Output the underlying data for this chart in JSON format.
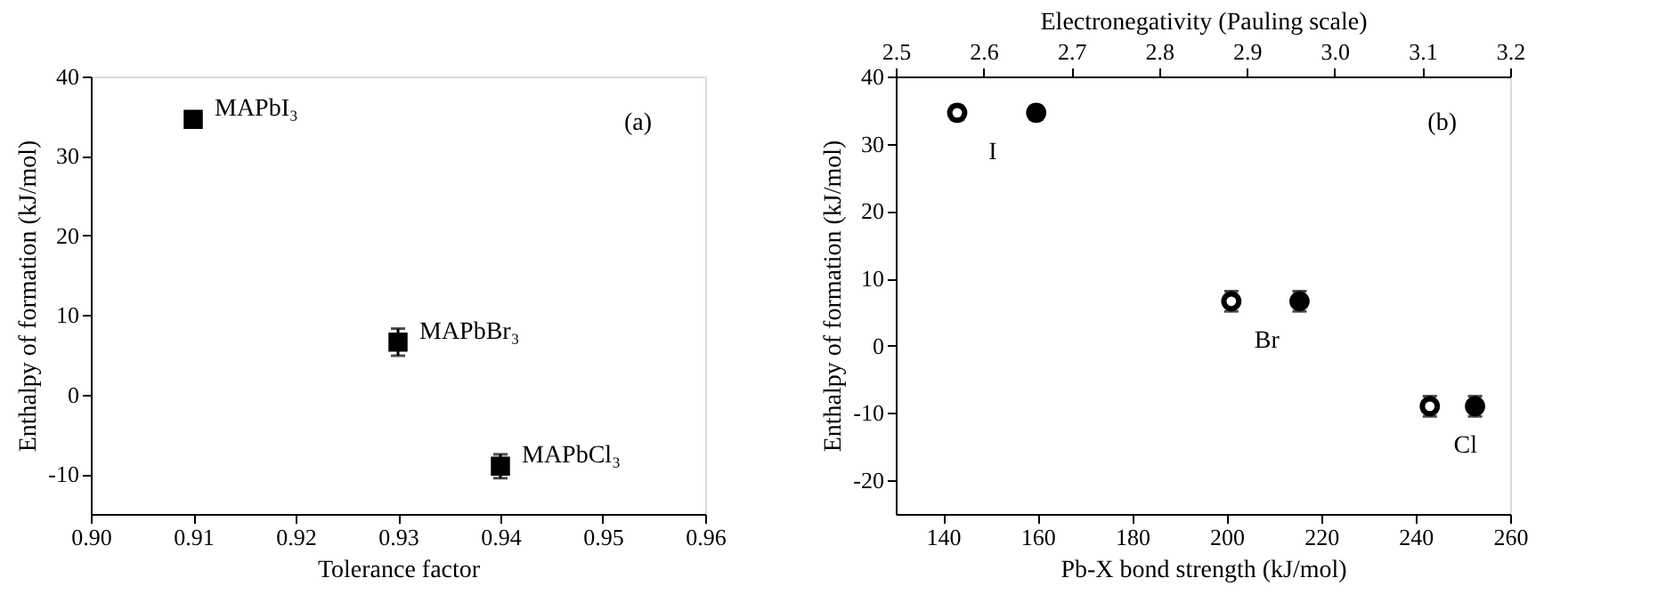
{
  "chart_data": [
    {
      "type": "scatter",
      "xlabel": "Tolerance factor",
      "ylabel": "Enthalpy of formation (kJ/mol)",
      "marker": "square",
      "grid": false,
      "x": [
        0.91,
        0.93,
        0.94
      ],
      "series": [
        {
          "color": "#000000",
          "values": [
            34.6,
            6.6,
            -9.0
          ],
          "errors": [
            1.0,
            1.7,
            1.5
          ]
        }
      ],
      "xlim": [
        0.9,
        0.96
      ],
      "xticks": [
        {
          "value": 0.9,
          "label": "0.90"
        },
        0.91,
        0.92,
        0.93,
        0.94,
        0.95,
        {
          "value": 0.96,
          "label": "0.96"
        }
      ],
      "ylim": [
        -15,
        40
      ],
      "yticks": [
        -10,
        0,
        10,
        20,
        30,
        40
      ],
      "annotations": [
        {
          "text": "MAPbI₃",
          "x": 0.91,
          "y": 34.6
        },
        {
          "text": "MAPbBr₃",
          "x": 0.93,
          "y": 6.6
        },
        {
          "text": "MAPbCl₃",
          "x": 0.94,
          "y": -9.0
        },
        "(a)"
      ]
    },
    {
      "type": "scatter",
      "xlabel": "Pb-X bond strength (kJ/mol)",
      "x2label": "Electronegativity (Pauling scale)",
      "ylabel": "Enthalpy of formation (kJ/mol)",
      "marker": "circle",
      "grid": false,
      "series": [
        {
          "color": "#000000",
          "x": [
            143,
            201,
            243
          ],
          "values": [
            34.6,
            6.6,
            -9.0
          ],
          "errors": [
            1.0,
            1.5,
            1.5
          ]
        },
        {
          "color": "#000000",
          "axis": "x2",
          "x": [
            2.66,
            2.96,
            3.16
          ],
          "values": [
            34.6,
            6.6,
            -9.0
          ],
          "errors": [
            1.0,
            1.5,
            1.5
          ]
        }
      ],
      "xlim": [
        130,
        260
      ],
      "xticks": [
        140,
        160,
        180,
        200,
        220,
        240,
        260
      ],
      "x2lim": [
        2.5,
        3.2
      ],
      "x2ticks": [
        2.5,
        2.6,
        2.7,
        2.8,
        2.9,
        {
          "value": 3.0,
          "label": "3.0"
        },
        3.1,
        3.2
      ],
      "ylim": [
        -25,
        40
      ],
      "yticks": [
        -20,
        -10,
        0,
        10,
        20,
        30,
        40
      ],
      "annotations": [
        {
          "text": "I",
          "x": 143,
          "y": 34.6
        },
        {
          "text": "Br",
          "x": 201,
          "y": 6.6
        },
        {
          "text": "Cl",
          "x": 243,
          "y": -9.0
        },
        "(b)"
      ]
    }
  ]
}
